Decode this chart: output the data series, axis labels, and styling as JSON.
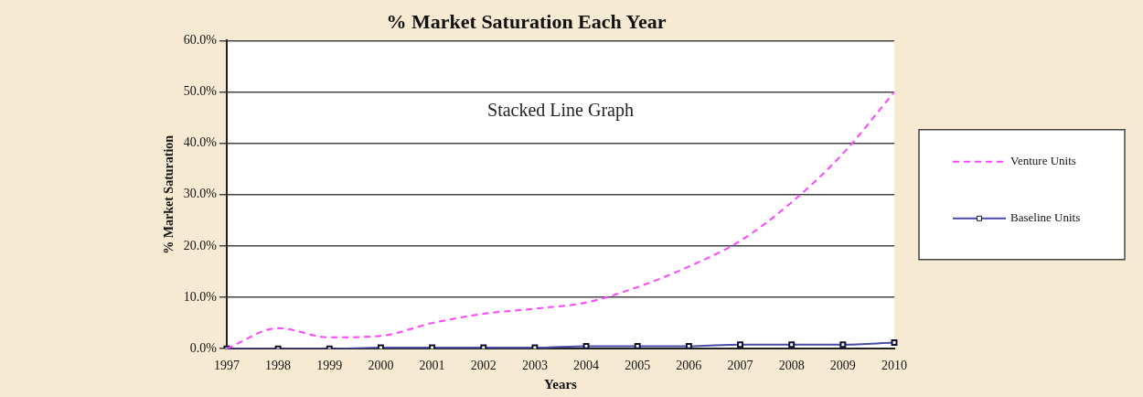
{
  "chart_data": {
    "type": "line",
    "title": "% Market Saturation Each Year",
    "xlabel": "Years",
    "ylabel": "% Market Saturation",
    "annotations": [
      "Stacked Line Graph"
    ],
    "categories": [
      "1997",
      "1998",
      "1999",
      "2000",
      "2001",
      "2002",
      "2003",
      "2004",
      "2005",
      "2006",
      "2007",
      "2008",
      "2009",
      "2010"
    ],
    "series": [
      {
        "name": "Venture Units",
        "color": "#ff44ff",
        "line_style": "dashed",
        "marker": "none",
        "values": [
          0,
          4,
          2.2,
          2.5,
          5,
          6.8,
          7.8,
          9,
          12,
          16,
          21,
          28.5,
          38,
          50
        ]
      },
      {
        "name": "Baseline Units",
        "color": "#4a4aa8",
        "line_style": "solid",
        "marker": "square",
        "values": [
          0,
          0,
          0,
          0.2,
          0.2,
          0.2,
          0.2,
          0.5,
          0.5,
          0.5,
          0.8,
          0.8,
          0.8,
          1.2
        ]
      }
    ],
    "ylim": [
      0,
      60
    ],
    "yticks": [
      {
        "value": 0,
        "label": "0.0%"
      },
      {
        "value": 10,
        "label": "10.0%"
      },
      {
        "value": 20,
        "label": "20.0%"
      },
      {
        "value": 30,
        "label": "30.0%"
      },
      {
        "value": 40,
        "label": "40.0%"
      },
      {
        "value": 50,
        "label": "50.0%"
      },
      {
        "value": 60,
        "label": "60.0%"
      }
    ],
    "grid": "y",
    "legend": "right"
  }
}
